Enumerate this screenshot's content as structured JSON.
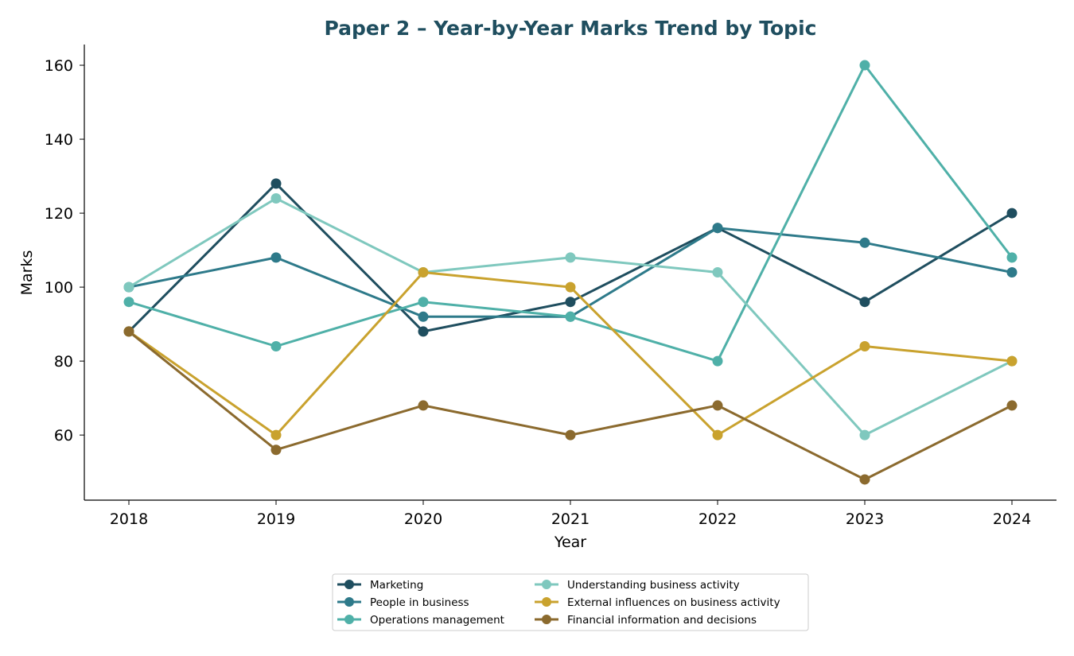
{
  "chart_data": {
    "type": "line",
    "title": "Paper 2 – Year-by-Year Marks Trend by Topic",
    "xlabel": "Year",
    "ylabel": "Marks",
    "x": [
      2018,
      2019,
      2020,
      2021,
      2022,
      2023,
      2024
    ],
    "x_tick_labels": [
      "2018",
      "2019",
      "2020",
      "2021",
      "2022",
      "2023",
      "2024"
    ],
    "y_ticks": [
      60,
      80,
      100,
      120,
      140,
      160
    ],
    "ylim": [
      42.4,
      165.6
    ],
    "grid": false,
    "legend_position": "bottom-center",
    "series": [
      {
        "name": "Marketing",
        "color": "#1f4e5f",
        "values": [
          88,
          128,
          88,
          96,
          116,
          96,
          120
        ]
      },
      {
        "name": "People in business",
        "color": "#2e7a8a",
        "values": [
          100,
          108,
          92,
          92,
          116,
          112,
          104
        ]
      },
      {
        "name": "Operations management",
        "color": "#4fb0a8",
        "values": [
          96,
          84,
          96,
          92,
          80,
          160,
          108
        ]
      },
      {
        "name": "Understanding business activity",
        "color": "#7fc8be",
        "values": [
          100,
          124,
          104,
          108,
          104,
          60,
          80
        ]
      },
      {
        "name": "External influences on business activity",
        "color": "#c9a22e",
        "values": [
          88,
          60,
          104,
          100,
          60,
          84,
          80
        ]
      },
      {
        "name": "Financial information and decisions",
        "color": "#8b6a2e",
        "values": [
          88,
          56,
          68,
          60,
          68,
          48,
          68
        ]
      }
    ]
  }
}
